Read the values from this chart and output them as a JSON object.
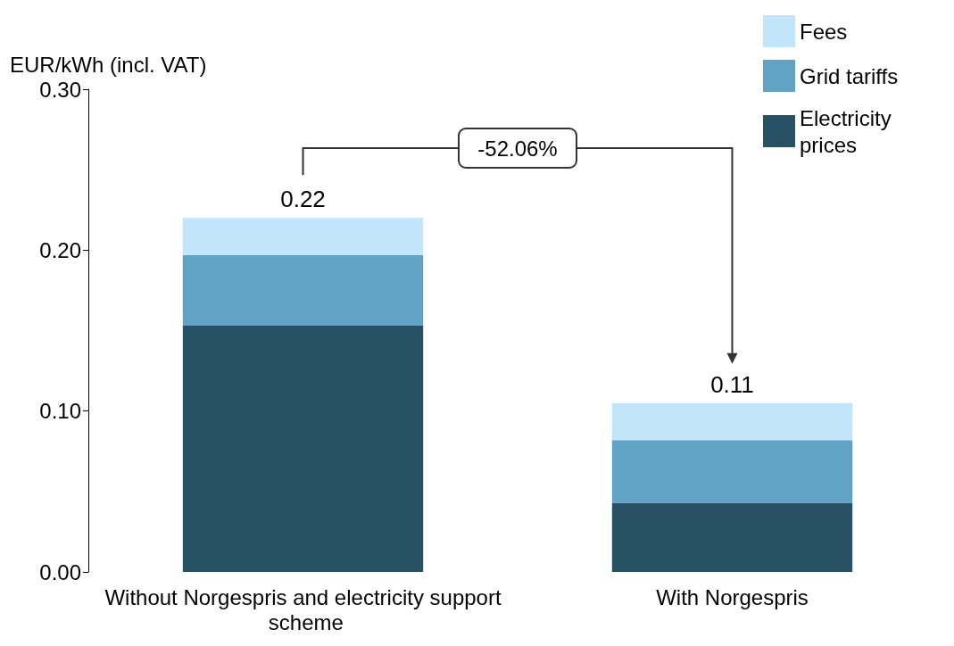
{
  "chart_data": {
    "type": "bar",
    "stacked": true,
    "ylabel": "EUR/kWh (incl. VAT)",
    "categories": [
      "Without Norgespris and electricity support scheme",
      "With Norgespris"
    ],
    "series": [
      {
        "name": "Electricity prices",
        "color": "#285166",
        "values": [
          0.153,
          0.043
        ]
      },
      {
        "name": "Grid tariffs",
        "color": "#62a3c5",
        "values": [
          0.044,
          0.039
        ]
      },
      {
        "name": "Fees",
        "color": "#c3e5fb",
        "values": [
          0.023,
          0.023
        ]
      }
    ],
    "totals": [
      "0.22",
      "0.11"
    ],
    "annotations": [
      "-52.06%"
    ],
    "ylim": [
      0,
      0.3
    ],
    "yticks": [
      {
        "value": 0,
        "label": "0.00"
      },
      {
        "value": 0.1,
        "label": "0.10"
      },
      {
        "value": 0.2,
        "label": "0.20"
      },
      {
        "value": 0.3,
        "label": "0.30"
      }
    ],
    "grid": false,
    "legend": "top right"
  }
}
